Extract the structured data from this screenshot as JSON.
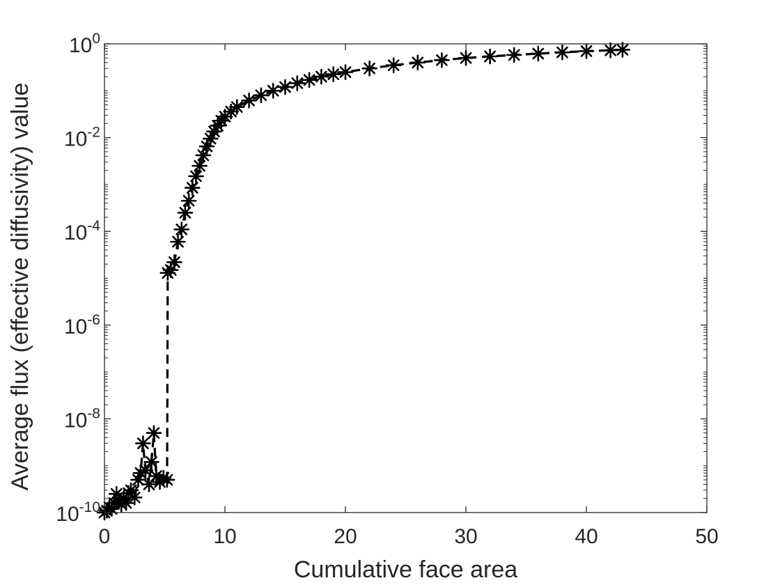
{
  "chart_data": {
    "type": "line",
    "title": "",
    "xlabel": "Cumulative face area",
    "ylabel": "Average flux (effective diffusivity) value",
    "xlim": [
      0,
      50
    ],
    "ylim": [
      1e-10,
      1
    ],
    "yscale": "log",
    "grid": false,
    "xticks": [
      {
        "value": 0,
        "label": "0"
      },
      {
        "value": 10,
        "label": "10"
      },
      {
        "value": 20,
        "label": "20"
      },
      {
        "value": 30,
        "label": "30"
      },
      {
        "value": 40,
        "label": "40"
      },
      {
        "value": 50,
        "label": "50"
      }
    ],
    "yticks": [
      {
        "value": 1e-10,
        "base": "10",
        "exp": "-10"
      },
      {
        "value": 1e-08,
        "base": "10",
        "exp": "-8"
      },
      {
        "value": 1e-06,
        "base": "10",
        "exp": "-6"
      },
      {
        "value": 0.0001,
        "base": "10",
        "exp": "-4"
      },
      {
        "value": 0.01,
        "base": "10",
        "exp": "-2"
      },
      {
        "value": 1,
        "base": "10",
        "exp": "0"
      }
    ],
    "series": [
      {
        "line_style": "dashed",
        "marker": "asterisk",
        "color": "#000000",
        "points": [
          [
            0.0,
            1e-10
          ],
          [
            0.2,
            1.1e-10
          ],
          [
            0.4,
            1.3e-10
          ],
          [
            0.6,
            1.2e-10
          ],
          [
            0.8,
            1.6e-10
          ],
          [
            1.0,
            2.5e-10
          ],
          [
            1.2,
            1.8e-10
          ],
          [
            1.4,
            1.5e-10
          ],
          [
            1.6,
            2e-10
          ],
          [
            1.8,
            1.6e-10
          ],
          [
            2.0,
            2.6e-10
          ],
          [
            2.2,
            3e-10
          ],
          [
            2.5,
            2.1e-10
          ],
          [
            2.8,
            5e-10
          ],
          [
            3.0,
            7e-10
          ],
          [
            3.2,
            3e-09
          ],
          [
            3.4,
            8e-10
          ],
          [
            3.7,
            4e-10
          ],
          [
            3.9,
            1.2e-09
          ],
          [
            4.1,
            5e-09
          ],
          [
            4.3,
            6e-10
          ],
          [
            4.6,
            4.5e-10
          ],
          [
            4.9,
            5.5e-10
          ],
          [
            5.2,
            5e-10
          ],
          [
            5.25,
            1.3e-05
          ],
          [
            5.5,
            1.5e-05
          ],
          [
            5.8,
            2.2e-05
          ],
          [
            6.1,
            6e-05
          ],
          [
            6.4,
            0.00011
          ],
          [
            6.7,
            0.00025
          ],
          [
            7.0,
            0.00045
          ],
          [
            7.3,
            0.00085
          ],
          [
            7.6,
            0.0015
          ],
          [
            7.9,
            0.0025
          ],
          [
            8.2,
            0.0042
          ],
          [
            8.5,
            0.0065
          ],
          [
            8.8,
            0.0095
          ],
          [
            9.1,
            0.0135
          ],
          [
            9.4,
            0.018
          ],
          [
            9.7,
            0.023
          ],
          [
            10.0,
            0.028
          ],
          [
            10.5,
            0.036
          ],
          [
            11.0,
            0.045
          ],
          [
            12.0,
            0.062
          ],
          [
            13.0,
            0.08
          ],
          [
            14.0,
            0.1
          ],
          [
            15.0,
            0.12
          ],
          [
            16.0,
            0.145
          ],
          [
            17.0,
            0.17
          ],
          [
            18.0,
            0.2
          ],
          [
            19.0,
            0.225
          ],
          [
            20.0,
            0.25
          ],
          [
            22.0,
            0.3
          ],
          [
            24.0,
            0.35
          ],
          [
            26.0,
            0.4
          ],
          [
            28.0,
            0.45
          ],
          [
            30.0,
            0.5
          ],
          [
            32.0,
            0.54
          ],
          [
            34.0,
            0.58
          ],
          [
            36.0,
            0.62
          ],
          [
            38.0,
            0.66
          ],
          [
            40.0,
            0.7
          ],
          [
            42.0,
            0.73
          ],
          [
            43.0,
            0.75
          ]
        ]
      }
    ]
  }
}
